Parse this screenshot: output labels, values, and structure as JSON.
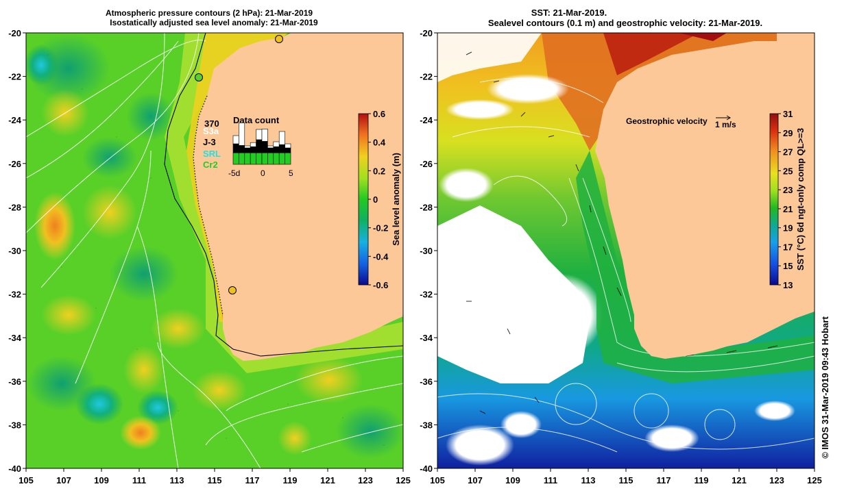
{
  "left_panel": {
    "title_line1": "Atmospheric pressure contours (2 hPa): 21-Mar-2019",
    "title_line2": "Isostatically adjusted sea level anomaly: 21-Mar-2019",
    "colorbar": {
      "label": "Sea level anomaly (m)",
      "ticks": [
        "0.6",
        "0.4",
        "0.2",
        "0",
        "-0.2",
        "-0.4",
        "-0.6"
      ]
    },
    "data_count": {
      "title": "Data count",
      "max_label": "370",
      "missions": [
        {
          "name": "S3a",
          "color": "#ffffff"
        },
        {
          "name": "J-3",
          "color": "#000000"
        },
        {
          "name": "SRL",
          "color": "#22e0e0"
        },
        {
          "name": "Cr2",
          "color": "#22cc22"
        }
      ],
      "axis_labels": [
        "-5d",
        "0",
        "5"
      ],
      "bars": [
        {
          "green": 0.28,
          "black": 0.22,
          "white": 0.2
        },
        {
          "green": 0.28,
          "black": 0.18,
          "white": 0.55
        },
        {
          "green": 0.28,
          "black": 0.12,
          "white": 0.05
        },
        {
          "green": 0.28,
          "black": 0.15,
          "white": 0.1
        },
        {
          "green": 0.28,
          "black": 0.32,
          "white": 0.25
        },
        {
          "green": 0.28,
          "black": 0.28,
          "white": 0.3
        },
        {
          "green": 0.28,
          "black": 0.12,
          "white": 0.05
        },
        {
          "green": 0.28,
          "black": 0.15,
          "white": 0.12
        },
        {
          "green": 0.28,
          "black": 0.2,
          "white": 0.32
        },
        {
          "green": 0.28,
          "black": 0.12,
          "white": 0.1
        }
      ]
    }
  },
  "right_panel": {
    "title_line1": "SST: 21-Mar-2019.",
    "title_line2": "Sealevel contours (0.1 m) and geostrophic velocity: 21-Mar-2019.",
    "velocity_label": "Geostrophic velocity",
    "velocity_scale": "1 m/s",
    "colorbar": {
      "label": "SST (°C) 6d ngt-only comp QL>=3",
      "ticks": [
        "31",
        "29",
        "27",
        "25",
        "23",
        "21",
        "19",
        "17",
        "15",
        "13"
      ]
    },
    "credit": "© IMOS 31-Mar-2019 09:43 Hobart"
  },
  "axes": {
    "lat_labels": [
      "-20",
      "-22",
      "-24",
      "-26",
      "-28",
      "-30",
      "-32",
      "-34",
      "-36",
      "-38",
      "-40"
    ],
    "lon_labels": [
      "105",
      "107",
      "109",
      "111",
      "113",
      "115",
      "117",
      "119",
      "121",
      "123",
      "125"
    ]
  },
  "colors": {
    "land": "#fcc898",
    "sla_green": "#22c822",
    "sst_red": "#c01010",
    "coast_line": "#000000",
    "contour": "#ffffff"
  }
}
